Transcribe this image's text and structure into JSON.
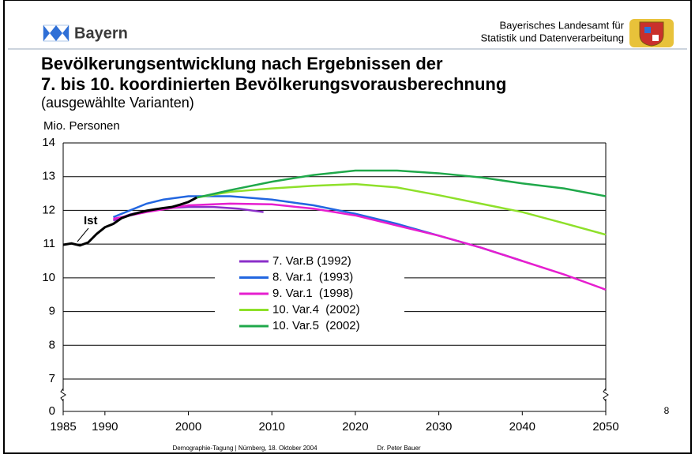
{
  "slide": {
    "brand": "Bayern",
    "agency_line1": "Bayerisches Landesamt für",
    "agency_line2": "Statistik und Datenverarbeitung",
    "footer_event": "Demographie-Tagung | Nürnberg, 18. Oktober 2004",
    "footer_author": "Dr. Peter Bauer",
    "page_number": "8"
  },
  "chart_data": {
    "type": "line",
    "title_line1": "Bevölkerungsentwicklung nach Ergebnissen der",
    "title_line2": "7. bis 10. koordinierten Bevölkerungsvorausberechnung",
    "subtitle": "(ausgewählte Varianten)",
    "y_label": "Mio. Personen",
    "annotation": "Ist",
    "xlim": [
      1985,
      2050
    ],
    "xticks": [
      1985,
      1990,
      2000,
      2010,
      2020,
      2030,
      2040,
      2050
    ],
    "ylim": [
      0,
      14
    ],
    "y_break": [
      0,
      7
    ],
    "yticks": [
      0,
      7,
      8,
      9,
      10,
      11,
      12,
      13,
      14
    ],
    "grid": true,
    "series": [
      {
        "name": "Ist",
        "color": "#000000",
        "x": [
          1985,
          1986,
          1987,
          1988,
          1989,
          1990,
          1991,
          1992,
          1993,
          1994,
          1995,
          1996,
          1997,
          1998,
          1999,
          2000,
          2001
        ],
        "values": [
          10.98,
          11.02,
          10.96,
          11.05,
          11.3,
          11.5,
          11.6,
          11.77,
          11.86,
          11.93,
          11.99,
          12.03,
          12.07,
          12.1,
          12.17,
          12.25,
          12.38
        ]
      },
      {
        "name": "7. Var.B (1992)",
        "color": "#8b2fc9",
        "x": [
          1991,
          1993,
          1995,
          1997,
          2000,
          2003,
          2006,
          2009
        ],
        "values": [
          11.7,
          11.88,
          11.99,
          12.06,
          12.1,
          12.1,
          12.05,
          11.95
        ]
      },
      {
        "name": "8. Var.1  (1993)",
        "color": "#2266e0",
        "x": [
          1991,
          1993,
          1995,
          1997,
          2000,
          2005,
          2010,
          2015,
          2020,
          2025,
          2030,
          2035,
          2040
        ],
        "values": [
          11.8,
          12.0,
          12.2,
          12.32,
          12.42,
          12.42,
          12.32,
          12.15,
          11.9,
          11.6,
          11.25,
          10.9,
          10.5
        ]
      },
      {
        "name": "9. Var.1  (1998)",
        "color": "#e61ecf",
        "x": [
          1991,
          1995,
          2000,
          2005,
          2010,
          2015,
          2020,
          2025,
          2030,
          2035,
          2040,
          2045,
          2050
        ],
        "values": [
          11.75,
          11.95,
          12.15,
          12.2,
          12.18,
          12.05,
          11.85,
          11.55,
          11.25,
          10.9,
          10.5,
          10.1,
          9.65
        ]
      },
      {
        "name": "10. Var.4  (2002)",
        "color": "#8ee02a",
        "x": [
          2001,
          2005,
          2010,
          2015,
          2020,
          2025,
          2030,
          2035,
          2040,
          2045,
          2050
        ],
        "values": [
          12.38,
          12.55,
          12.65,
          12.73,
          12.78,
          12.68,
          12.45,
          12.2,
          11.95,
          11.62,
          11.28
        ]
      },
      {
        "name": "10. Var.5  (2002)",
        "color": "#1fa84a",
        "x": [
          2001,
          2005,
          2010,
          2015,
          2020,
          2025,
          2030,
          2035,
          2040,
          2045,
          2050
        ],
        "values": [
          12.38,
          12.6,
          12.85,
          13.05,
          13.18,
          13.18,
          13.1,
          12.98,
          12.8,
          12.65,
          12.42
        ]
      }
    ]
  }
}
